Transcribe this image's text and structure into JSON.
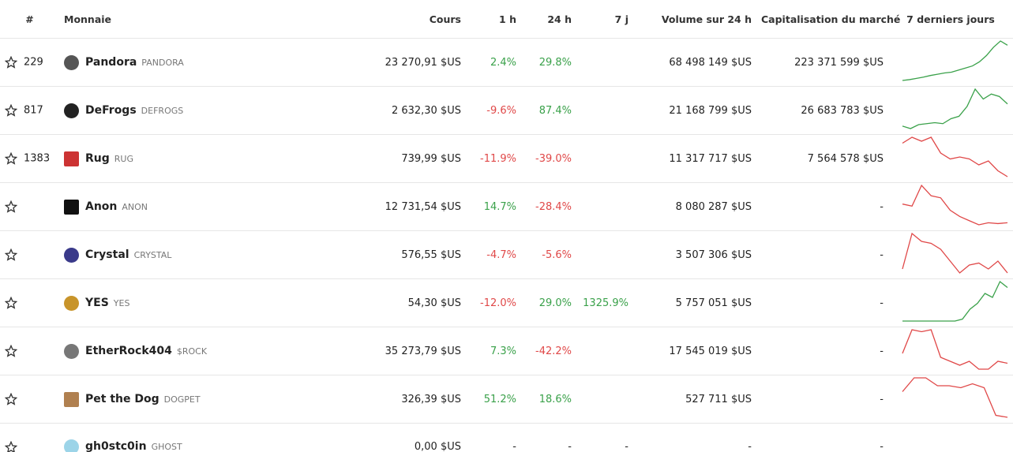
{
  "table": {
    "headers": [
      "#",
      "Monnaie",
      "Cours",
      "1 h",
      "24 h",
      "7 j",
      "Volume sur 24 h",
      "Capitalisation du marché",
      "7 derniers jours"
    ],
    "rows": [
      {
        "rank": "229",
        "name": "Pandora",
        "symbol": "PANDORA",
        "price": "23 270,91 $US",
        "h1": "2.4%",
        "h24": "29.8%",
        "d7": null,
        "volume": "68 498 149 $US",
        "mcap": "223 371 599 $US",
        "sparkline": [
          0,
          2,
          5,
          8,
          12,
          15,
          18,
          20,
          25,
          30,
          35,
          45,
          60,
          80,
          95,
          85
        ]
      },
      {
        "rank": "817",
        "name": "DeFrogs",
        "symbol": "DEFROGS",
        "price": "2 632,30 $US",
        "h1": "-9.6%",
        "h24": "87.4%",
        "d7": null,
        "volume": "21 168 799 $US",
        "mcap": "26 683 783 $US",
        "sparkline": [
          5,
          0,
          8,
          10,
          12,
          10,
          20,
          25,
          45,
          80,
          60,
          70,
          65,
          50
        ]
      },
      {
        "rank": "1383",
        "name": "Rug",
        "symbol": "RUG",
        "price": "739,99 $US",
        "h1": "-11.9%",
        "h24": "-39.0%",
        "d7": null,
        "volume": "11 317 717 $US",
        "mcap": "7 564 578 $US",
        "sparkline": [
          85,
          100,
          90,
          100,
          60,
          45,
          50,
          45,
          30,
          40,
          15,
          0
        ]
      },
      {
        "rank": null,
        "name": "Anon",
        "symbol": "ANON",
        "price": "12 731,54 $US",
        "h1": "14.7%",
        "h24": "-28.4%",
        "d7": null,
        "volume": "8 080 287 $US",
        "mcap": "-",
        "sparkline": [
          55,
          50,
          100,
          75,
          70,
          40,
          25,
          15,
          5,
          10,
          8,
          10
        ]
      },
      {
        "rank": null,
        "name": "Crystal",
        "symbol": "CRYSTAL",
        "price": "576,55 $US",
        "h1": "-4.7%",
        "h24": "-5.6%",
        "d7": null,
        "volume": "3 507 306 $US",
        "mcap": "-",
        "sparkline": [
          10,
          100,
          80,
          75,
          60,
          30,
          0,
          20,
          25,
          10,
          30,
          0
        ]
      },
      {
        "rank": null,
        "name": "YES",
        "symbol": "YES",
        "price": "54,30 $US",
        "h1": "-12.0%",
        "h24": "29.0%",
        "d7": "1325.9%",
        "volume": "5 757 051 $US",
        "mcap": "-",
        "sparkline": [
          0,
          0,
          0,
          0,
          0,
          0,
          0,
          0,
          5,
          30,
          45,
          70,
          60,
          100,
          85
        ]
      },
      {
        "rank": null,
        "name": "EtherRock404",
        "symbol": "$ROCK",
        "price": "35 273,79 $US",
        "h1": "7.3%",
        "h24": "-42.2%",
        "d7": null,
        "volume": "17 545 019 $US",
        "mcap": "-",
        "sparkline": [
          40,
          100,
          95,
          100,
          30,
          20,
          10,
          20,
          0,
          0,
          20,
          15
        ]
      },
      {
        "rank": null,
        "name": "Pet the Dog",
        "symbol": "DOGPET",
        "price": "326,39 $US",
        "h1": "51.2%",
        "h24": "18.6%",
        "d7": null,
        "volume": "527 711 $US",
        "mcap": "-",
        "sparkline": [
          65,
          100,
          100,
          80,
          80,
          75,
          85,
          75,
          5,
          0
        ]
      },
      {
        "rank": null,
        "name": "gh0stc0in",
        "symbol": "GHOST",
        "price": "0,00 $US",
        "h1": "-",
        "h24": "-",
        "d7": "-",
        "volume": "-",
        "mcap": "-",
        "sparkline": null
      }
    ]
  }
}
